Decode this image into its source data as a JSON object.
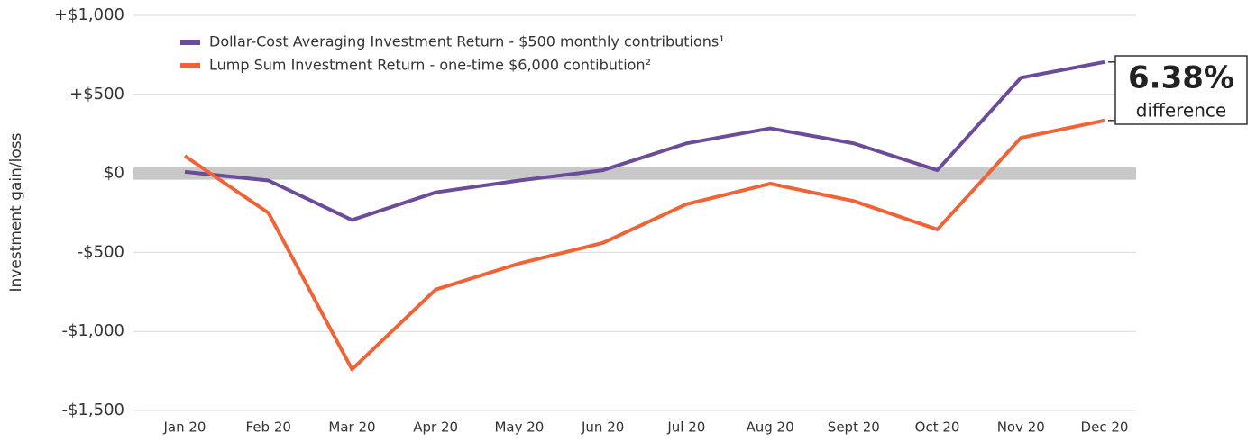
{
  "chart_data": {
    "type": "line",
    "y_label": "Investment gain/loss",
    "categories": [
      "Jan 20",
      "Feb 20",
      "Mar 20",
      "Apr 20",
      "May 20",
      "Jun 20",
      "Jul 20",
      "Aug 20",
      "Sept 20",
      "Oct 20",
      "Nov 20",
      "Dec 20"
    ],
    "series": [
      {
        "name": "Dollar-Cost Averaging Investment Return - $500 monthly contributions¹",
        "color": "#6b4c9a",
        "values": [
          10,
          -45,
          -295,
          -120,
          -45,
          20,
          190,
          285,
          190,
          20,
          605,
          705
        ]
      },
      {
        "name": "Lump Sum Investment Return - one-time $6,000 contibution²",
        "color": "#ef6337",
        "values": [
          110,
          -250,
          -1240,
          -735,
          -570,
          -440,
          -195,
          -65,
          -175,
          -355,
          225,
          335
        ]
      }
    ],
    "ylim": [
      -1500,
      1000
    ],
    "yticks": [
      {
        "value": -1500,
        "label": "-$1,500"
      },
      {
        "value": -1000,
        "label": "-$1,000"
      },
      {
        "value": -500,
        "label": "-$500"
      },
      {
        "value": 0,
        "label": "$0"
      },
      {
        "value": 500,
        "label": "+$500"
      },
      {
        "value": 1000,
        "label": "+$1,000"
      }
    ],
    "grid": true,
    "annotation": {
      "value": "6.38%",
      "text": "difference"
    }
  }
}
